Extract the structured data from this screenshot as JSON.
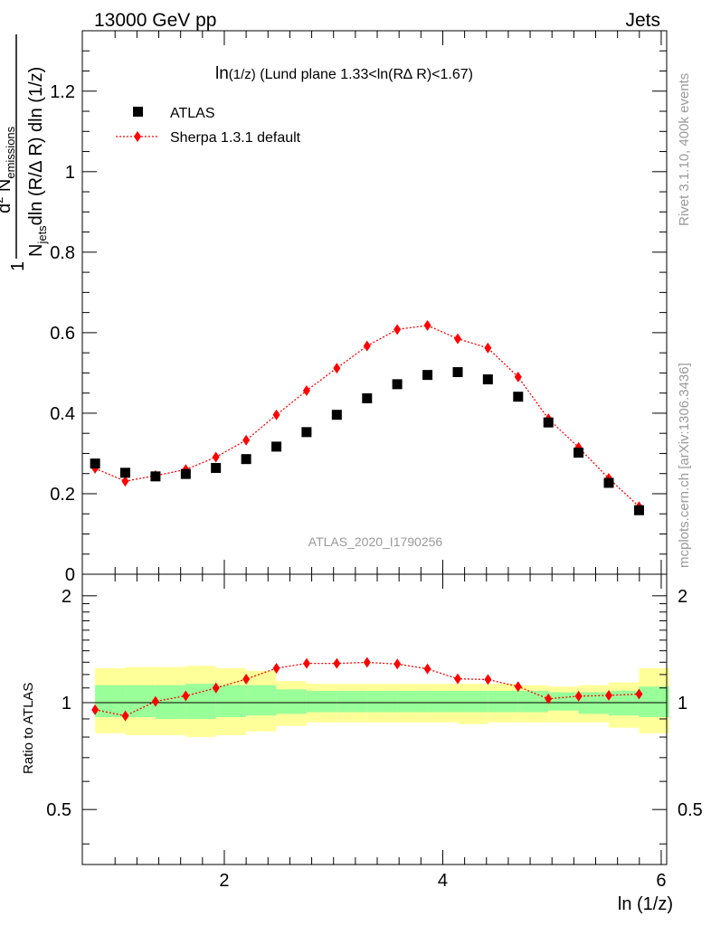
{
  "header": {
    "left": "13000 GeV pp",
    "right": "Jets"
  },
  "side_texts": {
    "rivet": "Rivet 3.1.10,  400k events",
    "mcplots": "mcplots.cern.ch [arXiv:1306.3436]"
  },
  "colors": {
    "data": "#000000",
    "mc": "#ff0000",
    "band_inner": "#99ff99",
    "band_outer": "#ffff99"
  },
  "chart_data": [
    {
      "type": "scatter",
      "panel": "main",
      "title": "ln(1/z) (Lund plane 1.33<ln(R∆ R)<1.67)",
      "title_main": "ln",
      "title_small": "(1/z)",
      "title_rest": " (Lund plane 1.33<ln(R∆ R)<1.67)",
      "ylabel": "1/N_jets dln(R/∆ R) dln(1/z) d² N_emissions",
      "watermark": "ATLAS_2020_I1790256",
      "xlim": [
        0.7,
        6.05
      ],
      "ylim": [
        0,
        1.35
      ],
      "yticks": [
        0,
        0.2,
        0.4,
        0.6,
        0.8,
        1,
        1.2
      ],
      "ytick_labels": [
        "0",
        "0.2",
        "0.4",
        "0.6",
        "0.8",
        "1",
        "1.2"
      ],
      "legend_position": "top-left",
      "x": [
        0.817,
        1.093,
        1.37,
        1.647,
        1.923,
        2.2,
        2.477,
        2.753,
        3.03,
        3.307,
        3.583,
        3.86,
        4.137,
        4.413,
        4.69,
        4.967,
        5.243,
        5.52,
        5.797
      ],
      "series": [
        {
          "name": "ATLAS",
          "marker": "square",
          "values": [
            0.275,
            0.252,
            0.243,
            0.249,
            0.264,
            0.286,
            0.317,
            0.353,
            0.396,
            0.437,
            0.472,
            0.495,
            0.502,
            0.484,
            0.441,
            0.377,
            0.302,
            0.227,
            0.159
          ]
        },
        {
          "name": "Sherpa 1.3.1 default",
          "marker": "diamond",
          "line": "dotted",
          "values": [
            0.263,
            0.231,
            0.245,
            0.26,
            0.291,
            0.333,
            0.396,
            0.456,
            0.512,
            0.567,
            0.608,
            0.618,
            0.585,
            0.562,
            0.49,
            0.386,
            0.315,
            0.238,
            0.168
          ]
        }
      ]
    },
    {
      "type": "line",
      "panel": "ratio",
      "ylabel": "Ratio to ATLAS",
      "xlabel": "ln (1/z)",
      "xlim": [
        0.7,
        6.05
      ],
      "ylim": [
        0.35,
        2.3
      ],
      "xticks": [
        2,
        4,
        6
      ],
      "xtick_labels": [
        "2",
        "4",
        "6"
      ],
      "yticks": [
        0.5,
        1,
        2
      ],
      "ytick_labels": [
        "0.5",
        "1",
        "2"
      ],
      "bin_edges": [
        0.817,
        1.093,
        1.37,
        1.647,
        1.923,
        2.2,
        2.477,
        2.753,
        3.03,
        3.307,
        3.583,
        3.86,
        4.137,
        4.413,
        4.69,
        4.967,
        5.243,
        5.52,
        5.797,
        6.073
      ],
      "x": [
        0.955,
        1.232,
        1.508,
        1.785,
        2.062,
        2.338,
        2.615,
        2.892,
        3.168,
        3.445,
        3.722,
        3.998,
        4.275,
        4.552,
        4.828,
        5.105,
        5.382,
        5.658,
        5.935
      ],
      "band_inner": [
        [
          0.91,
          1.12
        ],
        [
          0.91,
          1.12
        ],
        [
          0.9,
          1.12
        ],
        [
          0.9,
          1.13
        ],
        [
          0.91,
          1.12
        ],
        [
          0.92,
          1.12
        ],
        [
          0.93,
          1.09
        ],
        [
          0.94,
          1.08
        ],
        [
          0.94,
          1.08
        ],
        [
          0.94,
          1.08
        ],
        [
          0.94,
          1.08
        ],
        [
          0.94,
          1.08
        ],
        [
          0.94,
          1.08
        ],
        [
          0.94,
          1.08
        ],
        [
          0.94,
          1.08
        ],
        [
          0.95,
          1.07
        ],
        [
          0.93,
          1.07
        ],
        [
          0.92,
          1.08
        ],
        [
          0.91,
          1.11
        ]
      ],
      "band_outer": [
        [
          0.82,
          1.25
        ],
        [
          0.81,
          1.26
        ],
        [
          0.81,
          1.26
        ],
        [
          0.8,
          1.27
        ],
        [
          0.81,
          1.25
        ],
        [
          0.83,
          1.23
        ],
        [
          0.86,
          1.15
        ],
        [
          0.88,
          1.13
        ],
        [
          0.88,
          1.13
        ],
        [
          0.88,
          1.13
        ],
        [
          0.88,
          1.13
        ],
        [
          0.88,
          1.13
        ],
        [
          0.87,
          1.13
        ],
        [
          0.88,
          1.13
        ],
        [
          0.88,
          1.12
        ],
        [
          0.88,
          1.11
        ],
        [
          0.88,
          1.12
        ],
        [
          0.85,
          1.14
        ],
        [
          0.82,
          1.25
        ]
      ],
      "series": [
        {
          "name": "Sherpa 1.3.1 default",
          "values": [
            0.955,
            0.918,
            1.008,
            1.045,
            1.1,
            1.165,
            1.25,
            1.29,
            1.29,
            1.298,
            1.285,
            1.245,
            1.167,
            1.162,
            1.11,
            1.025,
            1.043,
            1.048,
            1.057
          ]
        }
      ]
    }
  ]
}
